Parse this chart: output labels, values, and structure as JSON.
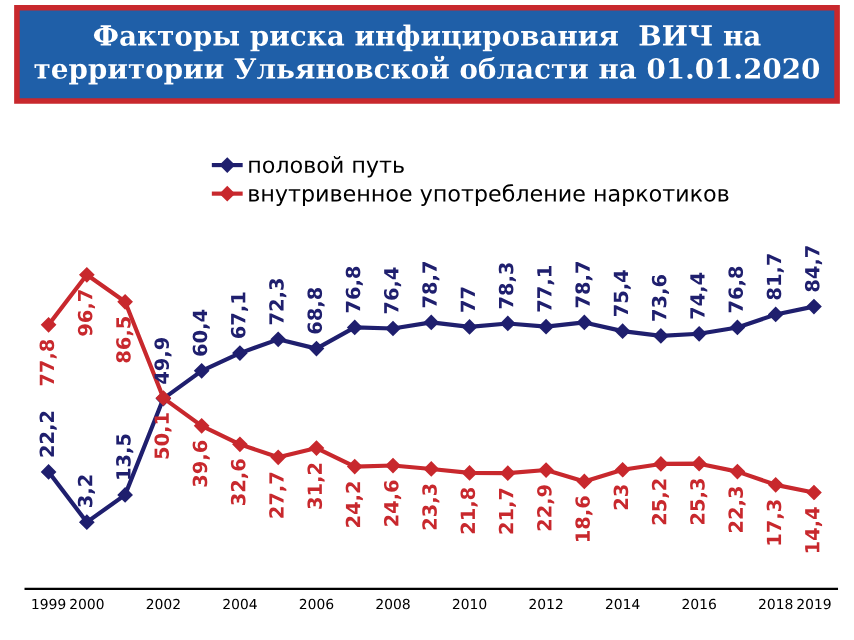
{
  "chart_data": {
    "type": "line",
    "title": "Факторы риска инфицирования  ВИЧ на территории Ульяновской области на 01.01.2020",
    "categories": [
      "1999",
      "2000",
      null,
      "2002",
      null,
      "2004",
      null,
      "2006",
      null,
      "2008",
      null,
      "2010",
      null,
      "2012",
      null,
      "2014",
      null,
      "2016",
      null,
      "2018",
      "2019"
    ],
    "series": [
      {
        "name": "половой путь",
        "color": "#1f1f6e",
        "values": [
          22.2,
          3.2,
          13.5,
          49.9,
          60.4,
          67.1,
          72.3,
          68.8,
          76.8,
          76.4,
          78.7,
          77,
          78.3,
          77.1,
          78.7,
          75.4,
          73.6,
          74.4,
          76.8,
          81.7,
          84.7
        ],
        "value_labels": [
          "22,2",
          "3,2",
          "13,5",
          "49,9",
          "60,4",
          "67,1",
          "72,3",
          "68,8",
          "76,8",
          "76,4",
          "78,7",
          "77",
          "78,3",
          "77,1",
          "78,7",
          "75,4",
          "73,6",
          "74,4",
          "76,8",
          "81,7",
          "84,7"
        ]
      },
      {
        "name": "внутривенное употребление наркотиков",
        "color": "#c8282d",
        "values": [
          77.8,
          96.7,
          86.5,
          50.1,
          39.6,
          32.6,
          27.7,
          31.2,
          24.2,
          24.6,
          23.3,
          21.8,
          21.7,
          22.9,
          18.6,
          23,
          25.2,
          25.3,
          22.3,
          17.3,
          14.4
        ],
        "value_labels": [
          "77,8",
          "96,7",
          "86,5",
          "50,1",
          "39,6",
          "32,6",
          "27,7",
          "31,2",
          "24,2",
          "24,6",
          "23,3",
          "21,8",
          "21,7",
          "22,9",
          "18,6",
          "23",
          "25,2",
          "25,3",
          "22,3",
          "17,3",
          "14,4"
        ]
      }
    ],
    "legend": "top",
    "marker": "diamond",
    "grid": false
  }
}
